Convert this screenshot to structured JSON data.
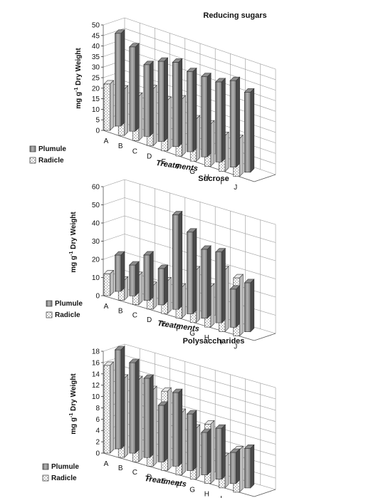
{
  "chart_data": [
    {
      "type": "bar",
      "title": "Reducing sugars",
      "xlabel": "Treatments",
      "ylabel_prefix": "mg g",
      "ylabel_sup": "-1",
      "ylabel_suffix": " Dry Weight",
      "ylim": [
        0,
        50
      ],
      "yticks": [
        "0",
        "5",
        "10",
        "15",
        "20",
        "25",
        "30",
        "35",
        "40",
        "45",
        "50"
      ],
      "categories": [
        "A",
        "B",
        "C",
        "D",
        "E",
        "F",
        "G",
        "H",
        "I",
        "J"
      ],
      "series": [
        {
          "name": "Plumule",
          "values": [
            44,
            40,
            34,
            38,
            40,
            38,
            38,
            38,
            41,
            38
          ]
        },
        {
          "name": "Radicle",
          "values": [
            22,
            22,
            21,
            27,
            24,
            27,
            20,
            20,
            17,
            18
          ]
        }
      ],
      "legend": "bottom-left",
      "grid": true
    },
    {
      "type": "bar",
      "title": "Sucrose",
      "xlabel": "Treatments",
      "ylabel_prefix": "mg g",
      "ylabel_sup": "-1",
      "ylabel_suffix": " Dry Weight",
      "ylim": [
        0,
        60
      ],
      "yticks": [
        "0",
        "10",
        "20",
        "30",
        "40",
        "50",
        "60"
      ],
      "categories": [
        "A",
        "B",
        "C",
        "D",
        "E",
        "F",
        "G",
        "H",
        "I",
        "J"
      ],
      "series": [
        {
          "name": "Plumule",
          "values": [
            20,
            17,
            25,
            20,
            52,
            45,
            38,
            39,
            21,
            27
          ]
        },
        {
          "name": "Radicle",
          "values": [
            12,
            11,
            16,
            13,
            18,
            17,
            29,
            22,
            34,
            32
          ]
        }
      ],
      "legend": "bottom-left",
      "grid": true
    },
    {
      "type": "bar",
      "title": "Polysaccharides",
      "xlabel": "Treatments",
      "ylabel_prefix": "mg g",
      "ylabel_sup": "-1",
      "ylabel_suffix": " Dry Weight",
      "ylim": [
        0,
        18
      ],
      "yticks": [
        "0",
        "2",
        "4",
        "6",
        "8",
        "10",
        "12",
        "14",
        "16",
        "18"
      ],
      "categories": [
        "A",
        "B",
        "C",
        "D",
        "E",
        "F",
        "G",
        "H",
        "I",
        "J"
      ],
      "series": [
        {
          "name": "Plumule",
          "values": [
            17.5,
            16,
            14,
            10,
            13,
            10,
            7.5,
            9,
            5.5,
            7
          ]
        },
        {
          "name": "Radicle",
          "values": [
            15.5,
            14,
            14.5,
            13.5,
            14,
            11,
            9,
            10.5,
            5.5,
            7.5
          ]
        }
      ],
      "legend": "bottom-left",
      "grid": true
    }
  ]
}
